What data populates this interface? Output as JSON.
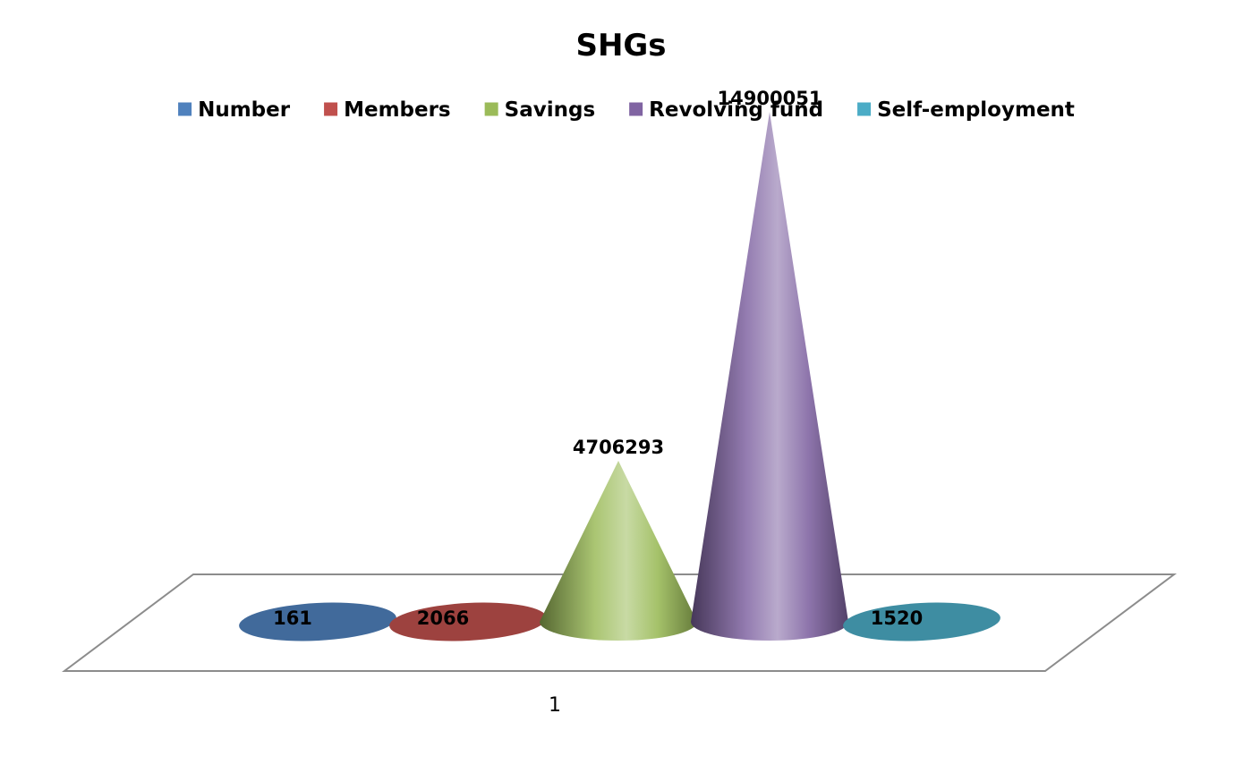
{
  "chart_data": {
    "type": "bar",
    "style": "3d-cone",
    "title": "SHGs",
    "categories": [
      "1"
    ],
    "series": [
      {
        "name": "Number",
        "values": [
          161
        ],
        "color": "#4F81BD"
      },
      {
        "name": "Members",
        "values": [
          2066
        ],
        "color": "#C0504D"
      },
      {
        "name": "Savings",
        "values": [
          4706293
        ],
        "color": "#9BBB59"
      },
      {
        "name": "Revolving fund",
        "values": [
          14900051
        ],
        "color": "#8064A2"
      },
      {
        "name": "Self-employment",
        "values": [
          1520
        ],
        "color": "#4BACC6"
      }
    ],
    "data_labels": [
      "161",
      "2066",
      "4706293",
      "14900051",
      "1520"
    ],
    "legend_position": "top",
    "grid": false,
    "xlabel": "",
    "ylabel": ""
  }
}
